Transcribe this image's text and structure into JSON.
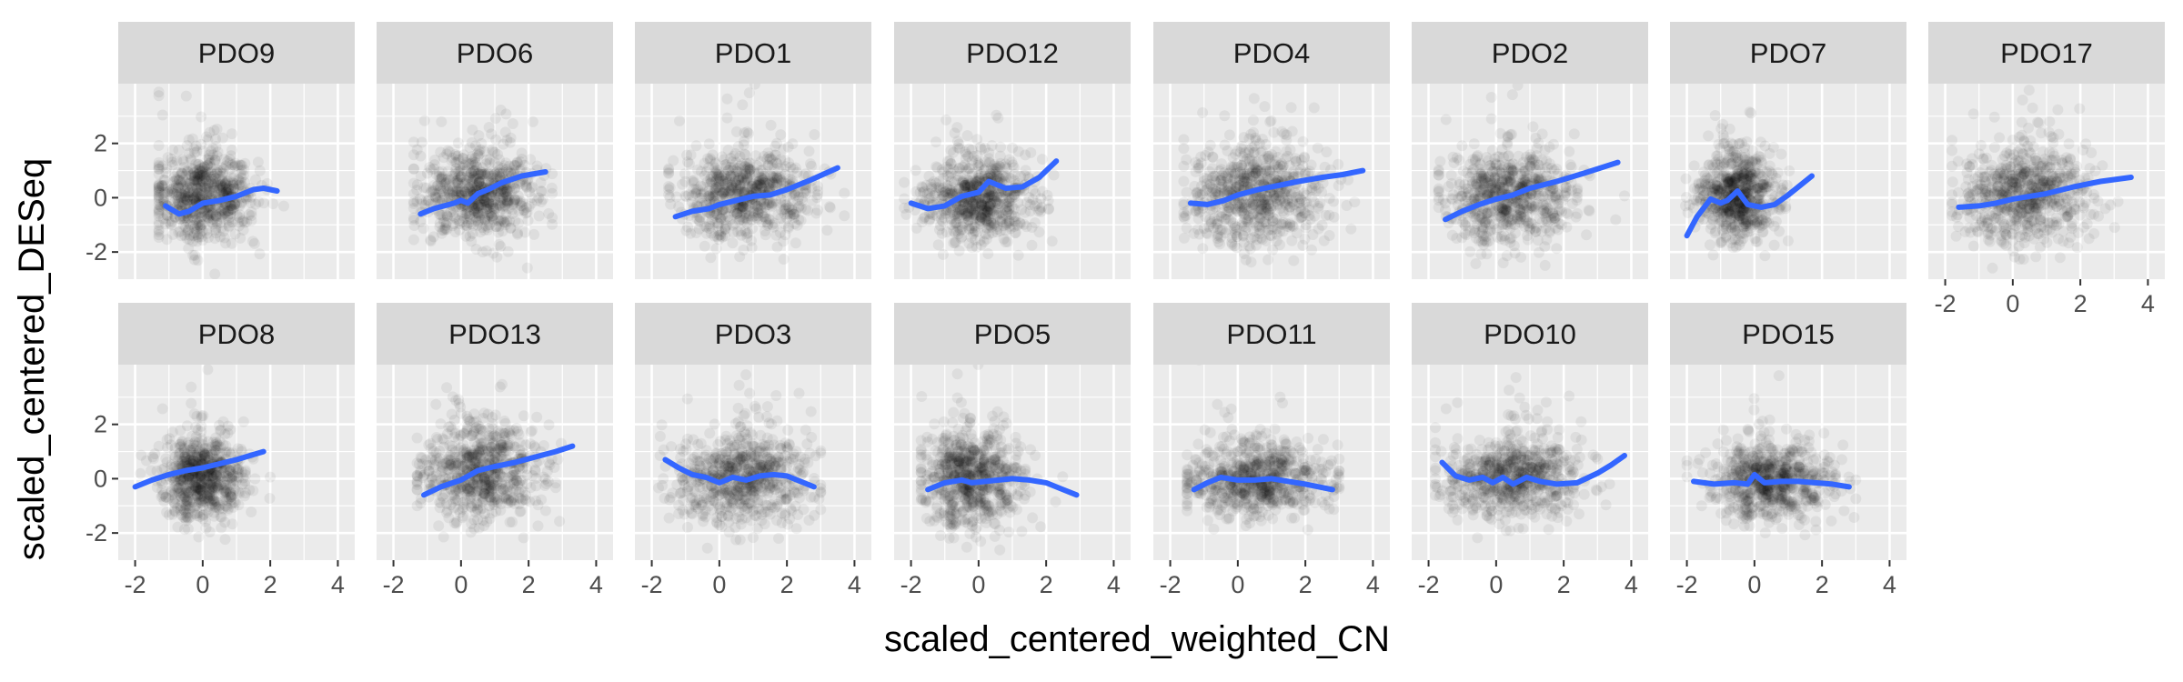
{
  "chart_data": {
    "type": "scatter",
    "title": "",
    "xlabel": "scaled_centered_weighted_CN",
    "ylabel": "scaled_centered_DESeq",
    "xlim": [
      -2.5,
      4.5
    ],
    "ylim": [
      -3,
      4.2
    ],
    "x_ticks": [
      -2,
      0,
      2,
      4
    ],
    "y_ticks": [
      -2,
      0,
      2
    ],
    "grid": true,
    "legend": "none",
    "smooth_color": "#3366FF",
    "point_color": "#000000",
    "panel_background": "#EBEBEB",
    "strip_background": "#D9D9D9",
    "facets": [
      {
        "label": "PDO9",
        "cloud": {
          "x_center": 0.0,
          "x_spread": 0.75,
          "y_center": 0.0,
          "y_spread": 0.95
        },
        "x_range": [
          -1.1,
          2.2
        ],
        "smooth": {
          "x": [
            -1.1,
            -0.7,
            -0.4,
            0.0,
            0.5,
            1.0,
            1.5,
            1.8,
            2.2
          ],
          "y": [
            -0.3,
            -0.6,
            -0.5,
            -0.2,
            -0.1,
            0.05,
            0.3,
            0.35,
            0.25
          ]
        }
      },
      {
        "label": "PDO6",
        "cloud": {
          "x_center": 0.5,
          "x_spread": 0.85,
          "y_center": 0.1,
          "y_spread": 0.95
        },
        "x_range": [
          -1.2,
          2.5
        ],
        "smooth": {
          "x": [
            -1.2,
            -0.8,
            -0.2,
            0.0,
            0.2,
            0.5,
            0.8,
            1.2,
            1.8,
            2.5
          ],
          "y": [
            -0.6,
            -0.4,
            -0.2,
            -0.1,
            -0.2,
            0.15,
            0.3,
            0.55,
            0.8,
            0.95
          ]
        }
      },
      {
        "label": "PDO1",
        "cloud": {
          "x_center": 0.8,
          "x_spread": 1.0,
          "y_center": 0.1,
          "y_spread": 0.9
        },
        "x_range": [
          -1.3,
          3.5
        ],
        "smooth": {
          "x": [
            -1.3,
            -0.8,
            -0.3,
            0.0,
            0.5,
            1.0,
            1.5,
            2.0,
            2.7,
            3.5
          ],
          "y": [
            -0.7,
            -0.5,
            -0.4,
            -0.25,
            -0.1,
            0.05,
            0.1,
            0.3,
            0.65,
            1.1
          ]
        }
      },
      {
        "label": "PDO12",
        "cloud": {
          "x_center": 0.0,
          "x_spread": 0.8,
          "y_center": -0.1,
          "y_spread": 0.85
        },
        "x_range": [
          -2.0,
          2.3
        ],
        "smooth": {
          "x": [
            -2.0,
            -1.5,
            -1.0,
            -0.5,
            0.0,
            0.3,
            0.8,
            1.3,
            1.8,
            2.3
          ],
          "y": [
            -0.2,
            -0.4,
            -0.3,
            0.05,
            0.2,
            0.6,
            0.35,
            0.4,
            0.75,
            1.35
          ]
        }
      },
      {
        "label": "PDO4",
        "cloud": {
          "x_center": 0.6,
          "x_spread": 1.0,
          "y_center": 0.1,
          "y_spread": 1.1
        },
        "x_range": [
          -1.4,
          3.7
        ],
        "smooth": {
          "x": [
            -1.4,
            -0.9,
            -0.4,
            0.0,
            0.6,
            1.2,
            1.8,
            2.5,
            3.1,
            3.7
          ],
          "y": [
            -0.2,
            -0.25,
            -0.1,
            0.1,
            0.3,
            0.45,
            0.6,
            0.75,
            0.85,
            1.0
          ]
        }
      },
      {
        "label": "PDO2",
        "cloud": {
          "x_center": 0.4,
          "x_spread": 0.95,
          "y_center": 0.0,
          "y_spread": 0.95
        },
        "x_range": [
          -1.5,
          3.6
        ],
        "smooth": {
          "x": [
            -1.5,
            -1.0,
            -0.5,
            0.0,
            0.5,
            1.0,
            1.8,
            2.6,
            3.6
          ],
          "y": [
            -0.8,
            -0.5,
            -0.25,
            -0.05,
            0.1,
            0.35,
            0.6,
            0.9,
            1.3
          ]
        }
      },
      {
        "label": "PDO7",
        "cloud": {
          "x_center": -0.5,
          "x_spread": 0.55,
          "y_center": 0.0,
          "y_spread": 0.9
        },
        "x_range": [
          -2.0,
          1.7
        ],
        "smooth": {
          "x": [
            -2.0,
            -1.7,
            -1.3,
            -1.0,
            -0.8,
            -0.5,
            -0.2,
            0.2,
            0.6,
            1.0,
            1.3,
            1.7
          ],
          "y": [
            -1.4,
            -0.7,
            -0.05,
            -0.2,
            -0.1,
            0.25,
            -0.25,
            -0.35,
            -0.25,
            0.1,
            0.4,
            0.8
          ]
        }
      },
      {
        "label": "PDO17",
        "cloud": {
          "x_center": 0.4,
          "x_spread": 0.95,
          "y_center": 0.1,
          "y_spread": 1.05
        },
        "x_range": [
          -1.6,
          3.5
        ],
        "smooth": {
          "x": [
            -1.6,
            -1.0,
            -0.5,
            0.0,
            0.5,
            1.0,
            1.8,
            2.6,
            3.5
          ],
          "y": [
            -0.35,
            -0.3,
            -0.2,
            -0.05,
            0.05,
            0.15,
            0.4,
            0.6,
            0.75
          ]
        }
      },
      {
        "label": "PDO8",
        "cloud": {
          "x_center": 0.0,
          "x_spread": 0.6,
          "y_center": 0.0,
          "y_spread": 0.85
        },
        "x_range": [
          -2.0,
          1.8
        ],
        "smooth": {
          "x": [
            -2.0,
            -1.5,
            -1.0,
            -0.5,
            0.0,
            0.5,
            1.0,
            1.4,
            1.8
          ],
          "y": [
            -0.3,
            -0.05,
            0.15,
            0.3,
            0.4,
            0.55,
            0.7,
            0.85,
            1.0
          ]
        }
      },
      {
        "label": "PDO13",
        "cloud": {
          "x_center": 0.6,
          "x_spread": 0.85,
          "y_center": 0.2,
          "y_spread": 1.0
        },
        "x_range": [
          -1.1,
          3.3
        ],
        "smooth": {
          "x": [
            -1.1,
            -0.6,
            0.0,
            0.5,
            1.0,
            1.6,
            2.2,
            2.8,
            3.3
          ],
          "y": [
            -0.6,
            -0.3,
            -0.05,
            0.3,
            0.45,
            0.6,
            0.8,
            1.0,
            1.2
          ]
        }
      },
      {
        "label": "PDO3",
        "cloud": {
          "x_center": 0.7,
          "x_spread": 1.0,
          "y_center": 0.0,
          "y_spread": 1.0
        },
        "x_range": [
          -1.6,
          2.8
        ],
        "smooth": {
          "x": [
            -1.6,
            -1.2,
            -0.8,
            -0.4,
            0.0,
            0.4,
            0.8,
            1.2,
            1.6,
            2.0,
            2.4,
            2.8
          ],
          "y": [
            0.7,
            0.4,
            0.15,
            0.05,
            -0.15,
            0.05,
            -0.05,
            0.1,
            0.15,
            0.1,
            -0.1,
            -0.3
          ]
        }
      },
      {
        "label": "PDO5",
        "cloud": {
          "x_center": -0.2,
          "x_spread": 0.75,
          "y_center": 0.0,
          "y_spread": 1.0
        },
        "x_range": [
          -1.5,
          2.9
        ],
        "smooth": {
          "x": [
            -1.5,
            -1.0,
            -0.5,
            -0.2,
            0.2,
            0.6,
            1.0,
            1.5,
            2.0,
            2.5,
            2.9
          ],
          "y": [
            -0.4,
            -0.15,
            -0.05,
            -0.15,
            -0.1,
            -0.05,
            0.0,
            -0.05,
            -0.15,
            -0.4,
            -0.6
          ]
        }
      },
      {
        "label": "PDO11",
        "cloud": {
          "x_center": 0.6,
          "x_spread": 1.0,
          "y_center": -0.1,
          "y_spread": 0.75
        },
        "x_range": [
          -1.3,
          2.8
        ],
        "smooth": {
          "x": [
            -1.3,
            -0.9,
            -0.5,
            0.0,
            0.5,
            1.0,
            1.5,
            2.0,
            2.4,
            2.8
          ],
          "y": [
            -0.4,
            -0.15,
            0.05,
            -0.05,
            -0.05,
            0.0,
            -0.1,
            -0.2,
            -0.3,
            -0.4
          ]
        }
      },
      {
        "label": "PDO10",
        "cloud": {
          "x_center": 0.5,
          "x_spread": 1.0,
          "y_center": 0.0,
          "y_spread": 0.85
        },
        "x_range": [
          -1.6,
          3.8
        ],
        "smooth": {
          "x": [
            -1.6,
            -1.2,
            -0.8,
            -0.4,
            -0.1,
            0.2,
            0.5,
            0.9,
            1.3,
            1.8,
            2.4,
            3.0,
            3.4,
            3.8
          ],
          "y": [
            0.6,
            0.1,
            -0.05,
            0.05,
            -0.15,
            0.05,
            -0.2,
            0.05,
            -0.1,
            -0.2,
            -0.15,
            0.2,
            0.5,
            0.85
          ]
        }
      },
      {
        "label": "PDO15",
        "cloud": {
          "x_center": 0.5,
          "x_spread": 0.9,
          "y_center": -0.1,
          "y_spread": 0.75
        },
        "x_range": [
          -1.8,
          2.8
        ],
        "smooth": {
          "x": [
            -1.8,
            -1.2,
            -0.6,
            -0.2,
            0.0,
            0.3,
            0.8,
            1.3,
            1.8,
            2.3,
            2.8
          ],
          "y": [
            -0.1,
            -0.2,
            -0.15,
            -0.2,
            0.15,
            -0.15,
            -0.1,
            -0.1,
            -0.15,
            -0.2,
            -0.3
          ]
        }
      }
    ]
  }
}
